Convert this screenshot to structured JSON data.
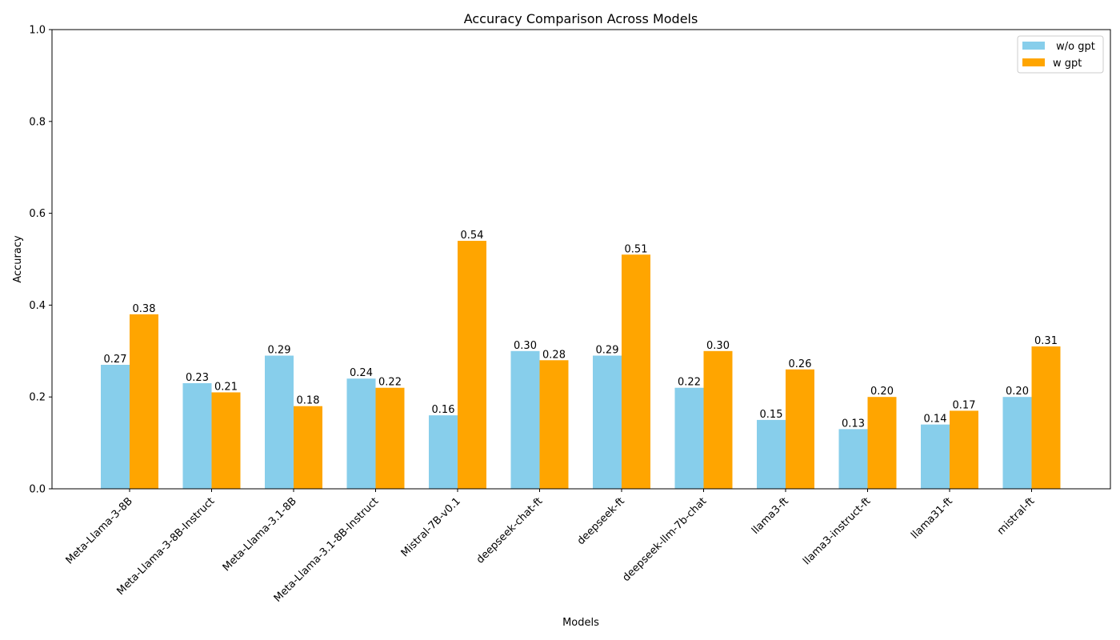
{
  "chart_data": {
    "type": "bar",
    "title": "Accuracy Comparison Across Models",
    "xlabel": "Models",
    "ylabel": "Accuracy",
    "ylim": [
      0,
      1.0
    ],
    "yticks": [
      0.0,
      0.2,
      0.4,
      0.6,
      0.8,
      1.0
    ],
    "grid": false,
    "legend_position": "top-right",
    "categories": [
      "Meta-Llama-3-8B",
      "Meta-Llama-3-8B-Instruct",
      "Meta-Llama-3.1-8B",
      "Meta-Llama-3.1-8B-Instruct",
      "Mistral-7B-v0.1",
      "deepseek-chat-ft",
      "deepseek-ft",
      "deepseek-llm-7b-chat",
      "llama3-ft",
      "llama3-instruct-ft",
      "llama31-ft",
      "mistral-ft"
    ],
    "series": [
      {
        "name": " w/o gpt",
        "color": "#87ceeb",
        "values": [
          0.27,
          0.23,
          0.29,
          0.24,
          0.16,
          0.3,
          0.29,
          0.22,
          0.15,
          0.13,
          0.14,
          0.2
        ]
      },
      {
        "name": "w gpt",
        "color": "#ffa500",
        "values": [
          0.38,
          0.21,
          0.18,
          0.22,
          0.54,
          0.28,
          0.51,
          0.3,
          0.26,
          0.2,
          0.17,
          0.31
        ]
      }
    ]
  }
}
